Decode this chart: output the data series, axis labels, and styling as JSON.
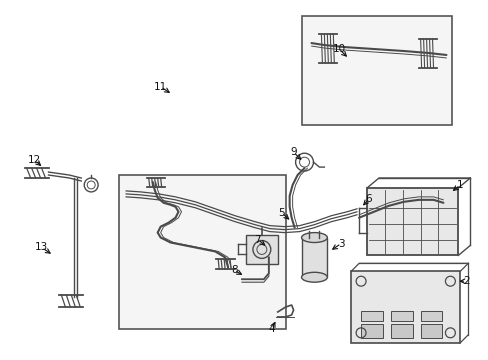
{
  "bg_color": "#ffffff",
  "line_color": "#4a4a4a",
  "figsize": [
    4.89,
    3.6
  ],
  "dpi": 100
}
